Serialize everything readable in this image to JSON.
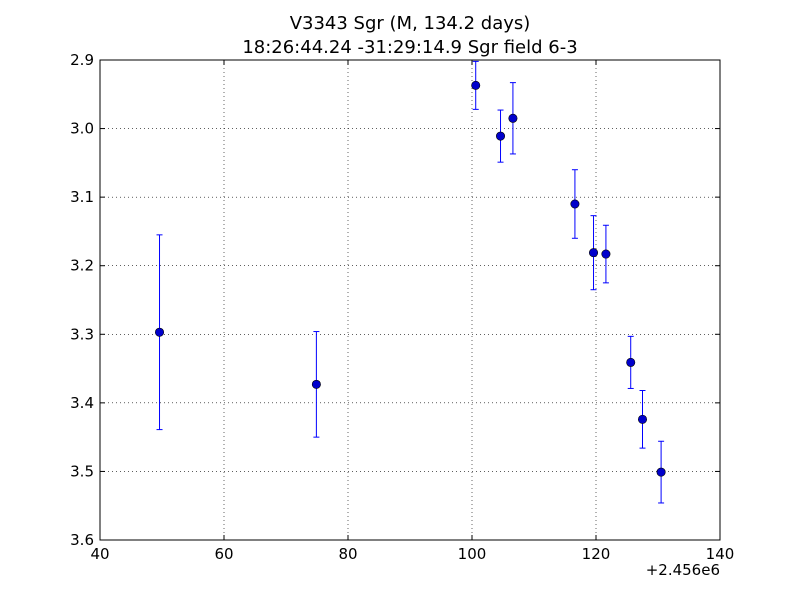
{
  "chart_data": {
    "type": "scatter",
    "title": "V3343 Sgr  (M, 134.2 days)",
    "subtitle": "18:26:44.24 -31:29:14.9 Sgr field 6-3",
    "xlabel": "",
    "ylabel": "",
    "x_offset_label": "+2.456e6",
    "xlim": [
      40,
      140
    ],
    "ylim": [
      2.9,
      3.6
    ],
    "y_inverted": true,
    "grid": true,
    "x_ticks": [
      40,
      60,
      80,
      100,
      120,
      140
    ],
    "x_tick_labels": [
      "40",
      "60",
      "80",
      "100",
      "120",
      "140"
    ],
    "y_ticks": [
      2.9,
      3.0,
      3.1,
      3.2,
      3.3,
      3.4,
      3.5,
      3.6
    ],
    "y_tick_labels": [
      "2.9",
      "3.0",
      "3.1",
      "3.2",
      "3.3",
      "3.4",
      "3.5",
      "3.6"
    ],
    "marker_color": "#0000cc",
    "errorbar_color": "#0000ff",
    "points": [
      {
        "x": 49.6,
        "y": 3.297,
        "yerr": 0.142
      },
      {
        "x": 74.9,
        "y": 3.373,
        "yerr": 0.077
      },
      {
        "x": 100.6,
        "y": 2.937,
        "yerr": 0.035
      },
      {
        "x": 104.6,
        "y": 3.011,
        "yerr": 0.038
      },
      {
        "x": 106.6,
        "y": 2.985,
        "yerr": 0.052
      },
      {
        "x": 116.6,
        "y": 3.11,
        "yerr": 0.05
      },
      {
        "x": 119.6,
        "y": 3.181,
        "yerr": 0.054
      },
      {
        "x": 121.6,
        "y": 3.183,
        "yerr": 0.042
      },
      {
        "x": 125.6,
        "y": 3.341,
        "yerr": 0.038
      },
      {
        "x": 127.5,
        "y": 3.424,
        "yerr": 0.042
      },
      {
        "x": 130.5,
        "y": 3.501,
        "yerr": 0.045
      }
    ]
  }
}
